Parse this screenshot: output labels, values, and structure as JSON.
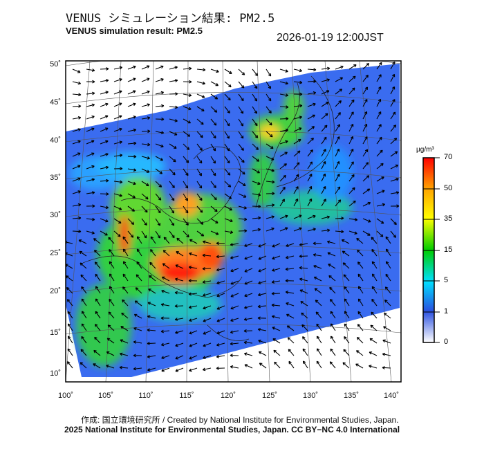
{
  "header": {
    "title_jp": "VENUS シミュレーション結果: PM2.5",
    "title_en": "VENUS simulation result: PM2.5",
    "datetime": "2026-01-19 12:00JST"
  },
  "map": {
    "lat_labels": [
      "50˚",
      "45˚",
      "40˚",
      "35˚",
      "30˚",
      "25˚",
      "20˚",
      "15˚",
      "10˚"
    ],
    "lon_labels": [
      "100˚",
      "105˚",
      "110˚",
      "115˚",
      "120˚",
      "125˚",
      "130˚",
      "135˚",
      "140˚"
    ],
    "variable": "PM2.5"
  },
  "colorbar": {
    "unit": "µg/m³",
    "ticks": [
      "70",
      "50",
      "35",
      "15",
      "5",
      "1",
      "0"
    ],
    "colors": [
      "#ff0000",
      "#ffa500",
      "#ffff00",
      "#00dd00",
      "#00ffff",
      "#2060ff",
      "#ffffff"
    ]
  },
  "footer": {
    "credit_jp_en": "作成: 国立環境研究所 / Created by National Institute for Environmental Studies, Japan.",
    "license": "2025 National Institute for Environmental Studies, Japan. CC BY−NC 4.0 International"
  }
}
